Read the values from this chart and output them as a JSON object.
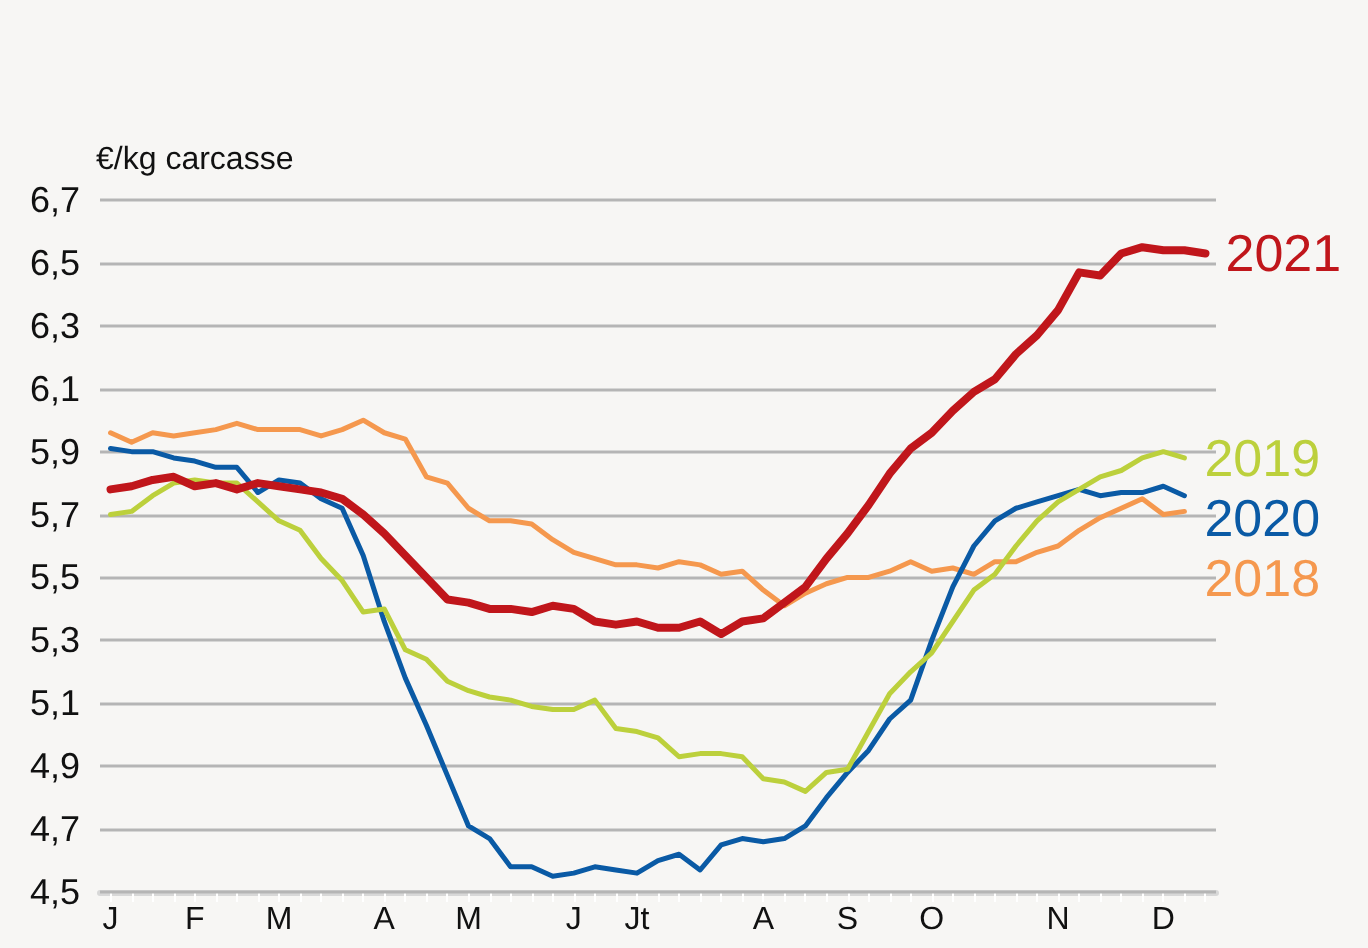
{
  "chart_data": {
    "type": "line",
    "ylabel": "€/kg carcasse",
    "categories": [
      "J",
      null,
      null,
      null,
      "F",
      null,
      null,
      null,
      "M",
      null,
      null,
      null,
      null,
      "A",
      null,
      null,
      null,
      "M",
      null,
      null,
      null,
      null,
      "J",
      null,
      null,
      "Jt",
      null,
      null,
      null,
      null,
      null,
      "A",
      null,
      null,
      null,
      "S",
      null,
      null,
      null,
      "O",
      null,
      null,
      null,
      null,
      null,
      "N",
      null,
      null,
      null,
      null,
      "D",
      null,
      null
    ],
    "series": [
      {
        "name": "2021",
        "color": "#c0161b",
        "values": [
          5.78,
          5.79,
          5.81,
          5.82,
          5.79,
          5.8,
          5.78,
          5.8,
          5.79,
          5.78,
          5.77,
          5.75,
          5.7,
          5.64,
          5.57,
          5.5,
          5.43,
          5.42,
          5.4,
          5.4,
          5.39,
          5.41,
          5.4,
          5.36,
          5.35,
          5.36,
          5.34,
          5.34,
          5.36,
          5.32,
          5.36,
          5.37,
          5.42,
          5.47,
          5.56,
          5.64,
          5.73,
          5.83,
          5.91,
          5.96,
          6.03,
          6.09,
          6.13,
          6.21,
          6.27,
          6.35,
          6.47,
          6.46,
          6.53,
          6.55,
          6.54,
          6.54,
          6.53
        ]
      },
      {
        "name": "2019",
        "color": "#bcd03c",
        "values": [
          5.7,
          5.71,
          5.76,
          5.8,
          5.81,
          5.8,
          5.8,
          5.74,
          5.68,
          5.65,
          5.56,
          5.49,
          5.39,
          5.4,
          5.27,
          5.24,
          5.17,
          5.14,
          5.12,
          5.11,
          5.09,
          5.08,
          5.08,
          5.11,
          5.02,
          5.01,
          4.99,
          4.93,
          4.94,
          4.94,
          4.93,
          4.86,
          4.85,
          4.82,
          4.88,
          4.89,
          5.01,
          5.13,
          5.2,
          5.26,
          5.36,
          5.46,
          5.51,
          5.6,
          5.68,
          5.74,
          5.78,
          5.82,
          5.84,
          5.88,
          5.9,
          5.88,
          null
        ]
      },
      {
        "name": "2020",
        "color": "#0a5aa5",
        "values": [
          5.91,
          5.9,
          5.9,
          5.88,
          5.87,
          5.85,
          5.85,
          5.77,
          5.81,
          5.8,
          5.75,
          5.72,
          5.57,
          5.36,
          5.18,
          5.03,
          4.87,
          4.71,
          4.67,
          4.58,
          4.58,
          4.55,
          4.56,
          4.58,
          4.57,
          4.56,
          4.6,
          4.62,
          4.57,
          4.65,
          4.67,
          4.66,
          4.67,
          4.71,
          4.8,
          4.88,
          4.95,
          5.05,
          5.11,
          5.3,
          5.47,
          5.6,
          5.68,
          5.72,
          5.74,
          5.76,
          5.78,
          5.76,
          5.77,
          5.77,
          5.79,
          5.76,
          null
        ]
      },
      {
        "name": "2018",
        "color": "#f5984e",
        "values": [
          5.96,
          5.93,
          5.96,
          5.95,
          5.96,
          5.97,
          5.99,
          5.97,
          5.97,
          5.97,
          5.95,
          5.97,
          6.0,
          5.96,
          5.94,
          5.82,
          5.8,
          5.72,
          5.68,
          5.68,
          5.67,
          5.62,
          5.58,
          5.56,
          5.54,
          5.54,
          5.53,
          5.55,
          5.54,
          5.51,
          5.52,
          5.46,
          5.41,
          5.45,
          5.48,
          5.5,
          5.5,
          5.52,
          5.55,
          5.52,
          5.53,
          5.51,
          5.55,
          5.55,
          5.58,
          5.6,
          5.65,
          5.69,
          5.72,
          5.75,
          5.7,
          5.71,
          null
        ]
      }
    ],
    "ylim": [
      4.5,
      6.7
    ],
    "yticks": [
      {
        "value": 4.5,
        "label": "4,5"
      },
      {
        "value": 4.7,
        "label": "4,7"
      },
      {
        "value": 4.9,
        "label": "4,9"
      },
      {
        "value": 5.1,
        "label": "5,1"
      },
      {
        "value": 5.3,
        "label": "5,3"
      },
      {
        "value": 5.5,
        "label": "5,5"
      },
      {
        "value": 5.7,
        "label": "5,7"
      },
      {
        "value": 5.9,
        "label": "5,9"
      },
      {
        "value": 6.1,
        "label": "6,1"
      },
      {
        "value": 6.3,
        "label": "6,3"
      },
      {
        "value": 6.5,
        "label": "6,5"
      },
      {
        "value": 6.7,
        "label": "6,7"
      }
    ],
    "grid": "y",
    "legend": false,
    "marker": "none",
    "line_style": "solid"
  }
}
